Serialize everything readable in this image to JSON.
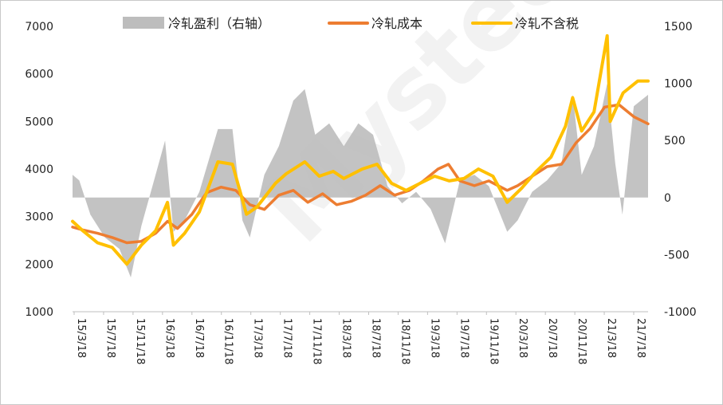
{
  "chart_data": {
    "type": "line",
    "legend": {
      "position": "top",
      "entries": [
        {
          "label": "冷轧盈利（右轴）",
          "color": "#bdbdbd",
          "kind": "area"
        },
        {
          "label": "冷轧成本",
          "color": "#ed7d31",
          "kind": "line"
        },
        {
          "label": "冷轧不含税",
          "color": "#ffc000",
          "kind": "line"
        }
      ]
    },
    "y_left": {
      "min": 1000,
      "max": 7000,
      "ticks": [
        "7000",
        "6000",
        "5000",
        "4000",
        "3000",
        "2000",
        "1000"
      ]
    },
    "y_right": {
      "min": -1000,
      "max": 1500,
      "ticks": [
        "1500",
        "1000",
        "500",
        "0",
        "-500",
        "-1000"
      ]
    },
    "x_ticks": [
      "15/3/18",
      "15/7/18",
      "15/11/18",
      "16/3/18",
      "16/7/18",
      "16/11/18",
      "17/3/18",
      "17/7/18",
      "17/11/18",
      "18/3/18",
      "18/7/18",
      "18/11/18",
      "19/3/18",
      "19/7/18",
      "19/11/18",
      "20/3/18",
      "20/7/18",
      "20/11/18",
      "21/3/18",
      "21/7/18"
    ],
    "x_range": [
      "2015-03-18",
      "2021-10-31"
    ],
    "grid": false,
    "series": [
      {
        "name": "冷轧成本",
        "axis": "left",
        "color": "#ed7d31",
        "points": [
          [
            "2015-03-18",
            2780
          ],
          [
            "2015-05-01",
            2720
          ],
          [
            "2015-07-01",
            2650
          ],
          [
            "2015-09-01",
            2560
          ],
          [
            "2015-11-01",
            2450
          ],
          [
            "2016-01-01",
            2480
          ],
          [
            "2016-03-01",
            2650
          ],
          [
            "2016-04-20",
            2900
          ],
          [
            "2016-06-01",
            2750
          ],
          [
            "2016-08-01",
            3050
          ],
          [
            "2016-10-01",
            3500
          ],
          [
            "2016-12-01",
            3620
          ],
          [
            "2017-02-01",
            3550
          ],
          [
            "2017-04-01",
            3250
          ],
          [
            "2017-06-01",
            3150
          ],
          [
            "2017-08-01",
            3450
          ],
          [
            "2017-10-01",
            3550
          ],
          [
            "2017-12-01",
            3300
          ],
          [
            "2018-02-01",
            3480
          ],
          [
            "2018-04-01",
            3250
          ],
          [
            "2018-06-01",
            3320
          ],
          [
            "2018-08-01",
            3450
          ],
          [
            "2018-10-01",
            3650
          ],
          [
            "2018-12-01",
            3450
          ],
          [
            "2019-02-01",
            3550
          ],
          [
            "2019-04-01",
            3750
          ],
          [
            "2019-06-01",
            4000
          ],
          [
            "2019-07-15",
            4100
          ],
          [
            "2019-09-01",
            3750
          ],
          [
            "2019-11-01",
            3650
          ],
          [
            "2020-01-01",
            3750
          ],
          [
            "2020-03-18",
            3550
          ],
          [
            "2020-05-01",
            3650
          ],
          [
            "2020-07-01",
            3850
          ],
          [
            "2020-09-01",
            4050
          ],
          [
            "2020-11-01",
            4100
          ],
          [
            "2021-01-01",
            4550
          ],
          [
            "2021-03-01",
            4850
          ],
          [
            "2021-05-01",
            5300
          ],
          [
            "2021-07-01",
            5350
          ],
          [
            "2021-09-01",
            5100
          ],
          [
            "2021-10-31",
            4950
          ]
        ]
      },
      {
        "name": "冷轧不含税",
        "axis": "left",
        "color": "#ffc000",
        "points": [
          [
            "2015-03-18",
            2900
          ],
          [
            "2015-05-01",
            2700
          ],
          [
            "2015-07-01",
            2450
          ],
          [
            "2015-09-01",
            2350
          ],
          [
            "2015-11-01",
            2000
          ],
          [
            "2016-01-01",
            2400
          ],
          [
            "2016-03-01",
            2700
          ],
          [
            "2016-04-20",
            3300
          ],
          [
            "2016-05-15",
            2400
          ],
          [
            "2016-07-01",
            2650
          ],
          [
            "2016-09-01",
            3100
          ],
          [
            "2016-11-18",
            4150
          ],
          [
            "2017-01-18",
            4100
          ],
          [
            "2017-03-18",
            3050
          ],
          [
            "2017-05-01",
            3200
          ],
          [
            "2017-07-18",
            3700
          ],
          [
            "2017-09-01",
            3900
          ],
          [
            "2017-11-18",
            4150
          ],
          [
            "2018-01-18",
            3850
          ],
          [
            "2018-03-18",
            3950
          ],
          [
            "2018-05-01",
            3800
          ],
          [
            "2018-07-18",
            4000
          ],
          [
            "2018-09-18",
            4100
          ],
          [
            "2018-11-18",
            3700
          ],
          [
            "2019-01-18",
            3550
          ],
          [
            "2019-03-18",
            3700
          ],
          [
            "2019-05-18",
            3850
          ],
          [
            "2019-07-18",
            3750
          ],
          [
            "2019-09-18",
            3800
          ],
          [
            "2019-11-18",
            4000
          ],
          [
            "2020-01-18",
            3850
          ],
          [
            "2020-03-18",
            3300
          ],
          [
            "2020-05-18",
            3600
          ],
          [
            "2020-07-18",
            3950
          ],
          [
            "2020-09-18",
            4250
          ],
          [
            "2020-11-18",
            4900
          ],
          [
            "2020-12-18",
            5500
          ],
          [
            "2021-01-25",
            4800
          ],
          [
            "2021-03-18",
            5200
          ],
          [
            "2021-05-12",
            6800
          ],
          [
            "2021-05-25",
            5000
          ],
          [
            "2021-07-18",
            5600
          ],
          [
            "2021-09-18",
            5850
          ],
          [
            "2021-10-31",
            5850
          ]
        ]
      },
      {
        "name": "冷轧盈利（右轴）",
        "axis": "right",
        "color": "#bdbdbd",
        "type": "area",
        "points": [
          [
            "2015-03-18",
            200
          ],
          [
            "2015-04-15",
            150
          ],
          [
            "2015-06-01",
            -150
          ],
          [
            "2015-08-01",
            -350
          ],
          [
            "2015-10-01",
            -450
          ],
          [
            "2015-11-18",
            -700
          ],
          [
            "2016-01-01",
            -250
          ],
          [
            "2016-03-01",
            200
          ],
          [
            "2016-04-10",
            500
          ],
          [
            "2016-05-15",
            -300
          ],
          [
            "2016-07-01",
            -200
          ],
          [
            "2016-09-01",
            50
          ],
          [
            "2016-11-18",
            600
          ],
          [
            "2017-01-18",
            600
          ],
          [
            "2017-03-01",
            -200
          ],
          [
            "2017-04-01",
            -350
          ],
          [
            "2017-06-01",
            200
          ],
          [
            "2017-08-01",
            450
          ],
          [
            "2017-10-01",
            850
          ],
          [
            "2017-11-18",
            950
          ],
          [
            "2018-01-01",
            550
          ],
          [
            "2018-03-01",
            650
          ],
          [
            "2018-05-01",
            450
          ],
          [
            "2018-07-01",
            650
          ],
          [
            "2018-09-01",
            550
          ],
          [
            "2018-11-01",
            100
          ],
          [
            "2019-01-01",
            -50
          ],
          [
            "2019-03-01",
            50
          ],
          [
            "2019-05-01",
            -100
          ],
          [
            "2019-07-01",
            -400
          ],
          [
            "2019-09-01",
            150
          ],
          [
            "2019-11-01",
            200
          ],
          [
            "2020-01-01",
            100
          ],
          [
            "2020-03-18",
            -300
          ],
          [
            "2020-05-01",
            -200
          ],
          [
            "2020-07-01",
            50
          ],
          [
            "2020-09-01",
            150
          ],
          [
            "2020-11-01",
            300
          ],
          [
            "2020-12-18",
            900
          ],
          [
            "2021-01-25",
            200
          ],
          [
            "2021-03-18",
            450
          ],
          [
            "2021-05-12",
            1000
          ],
          [
            "2021-06-15",
            300
          ],
          [
            "2021-07-15",
            -150
          ],
          [
            "2021-09-01",
            800
          ],
          [
            "2021-10-31",
            900
          ]
        ]
      }
    ]
  }
}
